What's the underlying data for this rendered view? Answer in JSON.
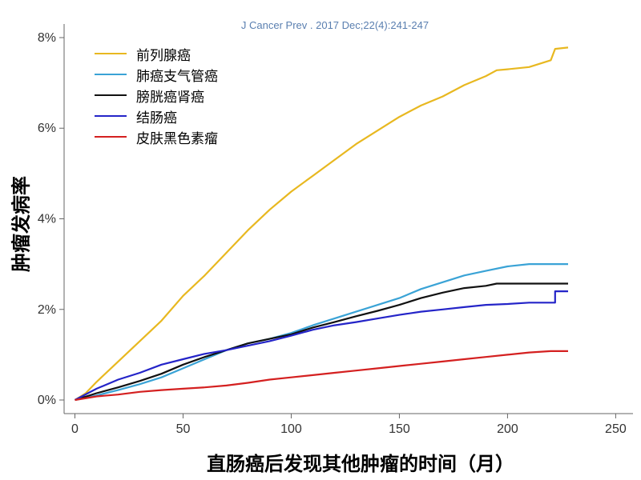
{
  "citation": "J Cancer Prev . 2017 Dec;22(4):241-247",
  "chart_data": {
    "type": "line",
    "title": "",
    "xlabel": "直肠癌后发现其他肿瘤的时间（月）",
    "ylabel": "肿瘤发病率",
    "xlim": [
      -5,
      258
    ],
    "ylim": [
      -0.3,
      8.3
    ],
    "x_ticks": [
      0,
      50,
      100,
      150,
      200,
      250
    ],
    "x_tick_labels": [
      "0",
      "50",
      "100",
      "150",
      "200",
      "250"
    ],
    "y_ticks": [
      0,
      2,
      4,
      6,
      8
    ],
    "y_tick_labels": [
      "0%",
      "2%",
      "4%",
      "6%",
      "8%"
    ],
    "grid": false,
    "legend_position": "top-left",
    "series": [
      {
        "name": "前列腺癌",
        "color": "#e8b820",
        "points": [
          [
            0,
            0
          ],
          [
            5,
            0.15
          ],
          [
            10,
            0.4
          ],
          [
            20,
            0.85
          ],
          [
            30,
            1.3
          ],
          [
            40,
            1.75
          ],
          [
            50,
            2.3
          ],
          [
            60,
            2.75
          ],
          [
            70,
            3.25
          ],
          [
            80,
            3.75
          ],
          [
            90,
            4.2
          ],
          [
            100,
            4.6
          ],
          [
            110,
            4.95
          ],
          [
            120,
            5.3
          ],
          [
            130,
            5.65
          ],
          [
            140,
            5.95
          ],
          [
            150,
            6.25
          ],
          [
            160,
            6.5
          ],
          [
            170,
            6.7
          ],
          [
            180,
            6.95
          ],
          [
            190,
            7.15
          ],
          [
            195,
            7.28
          ],
          [
            200,
            7.3
          ],
          [
            210,
            7.35
          ],
          [
            220,
            7.5
          ],
          [
            222,
            7.75
          ],
          [
            228,
            7.78
          ]
        ]
      },
      {
        "name": "肺癌支气管癌",
        "color": "#3aa3d6",
        "points": [
          [
            0,
            0
          ],
          [
            10,
            0.1
          ],
          [
            20,
            0.22
          ],
          [
            30,
            0.35
          ],
          [
            40,
            0.5
          ],
          [
            50,
            0.7
          ],
          [
            60,
            0.9
          ],
          [
            70,
            1.1
          ],
          [
            80,
            1.25
          ],
          [
            90,
            1.35
          ],
          [
            100,
            1.48
          ],
          [
            110,
            1.65
          ],
          [
            120,
            1.8
          ],
          [
            130,
            1.95
          ],
          [
            140,
            2.1
          ],
          [
            150,
            2.25
          ],
          [
            160,
            2.45
          ],
          [
            170,
            2.6
          ],
          [
            180,
            2.75
          ],
          [
            190,
            2.85
          ],
          [
            200,
            2.95
          ],
          [
            210,
            3.0
          ],
          [
            228,
            3.0
          ]
        ]
      },
      {
        "name": "膀胱癌肾癌",
        "color": "#111111",
        "points": [
          [
            0,
            0
          ],
          [
            10,
            0.15
          ],
          [
            20,
            0.28
          ],
          [
            30,
            0.42
          ],
          [
            40,
            0.58
          ],
          [
            50,
            0.78
          ],
          [
            60,
            0.95
          ],
          [
            70,
            1.1
          ],
          [
            80,
            1.25
          ],
          [
            90,
            1.35
          ],
          [
            100,
            1.45
          ],
          [
            110,
            1.6
          ],
          [
            120,
            1.72
          ],
          [
            130,
            1.85
          ],
          [
            140,
            1.97
          ],
          [
            150,
            2.1
          ],
          [
            160,
            2.25
          ],
          [
            170,
            2.37
          ],
          [
            180,
            2.47
          ],
          [
            190,
            2.52
          ],
          [
            195,
            2.57
          ],
          [
            228,
            2.57
          ]
        ]
      },
      {
        "name": "结肠癌",
        "color": "#2424c8",
        "points": [
          [
            0,
            0
          ],
          [
            10,
            0.25
          ],
          [
            20,
            0.45
          ],
          [
            30,
            0.6
          ],
          [
            40,
            0.78
          ],
          [
            50,
            0.9
          ],
          [
            60,
            1.02
          ],
          [
            70,
            1.1
          ],
          [
            80,
            1.2
          ],
          [
            90,
            1.3
          ],
          [
            100,
            1.42
          ],
          [
            110,
            1.55
          ],
          [
            120,
            1.65
          ],
          [
            130,
            1.72
          ],
          [
            140,
            1.8
          ],
          [
            150,
            1.88
          ],
          [
            160,
            1.95
          ],
          [
            170,
            2.0
          ],
          [
            180,
            2.05
          ],
          [
            190,
            2.1
          ],
          [
            200,
            2.12
          ],
          [
            210,
            2.15
          ],
          [
            222,
            2.15
          ],
          [
            222,
            2.4
          ],
          [
            228,
            2.4
          ]
        ]
      },
      {
        "name": "皮肤黑色素瘤",
        "color": "#d42020",
        "points": [
          [
            0,
            0
          ],
          [
            10,
            0.08
          ],
          [
            20,
            0.12
          ],
          [
            30,
            0.18
          ],
          [
            40,
            0.22
          ],
          [
            50,
            0.25
          ],
          [
            60,
            0.28
          ],
          [
            70,
            0.32
          ],
          [
            80,
            0.38
          ],
          [
            90,
            0.45
          ],
          [
            100,
            0.5
          ],
          [
            110,
            0.55
          ],
          [
            120,
            0.6
          ],
          [
            130,
            0.65
          ],
          [
            140,
            0.7
          ],
          [
            150,
            0.75
          ],
          [
            160,
            0.8
          ],
          [
            170,
            0.85
          ],
          [
            180,
            0.9
          ],
          [
            190,
            0.95
          ],
          [
            200,
            1.0
          ],
          [
            210,
            1.05
          ],
          [
            220,
            1.08
          ],
          [
            228,
            1.08
          ]
        ]
      }
    ]
  }
}
